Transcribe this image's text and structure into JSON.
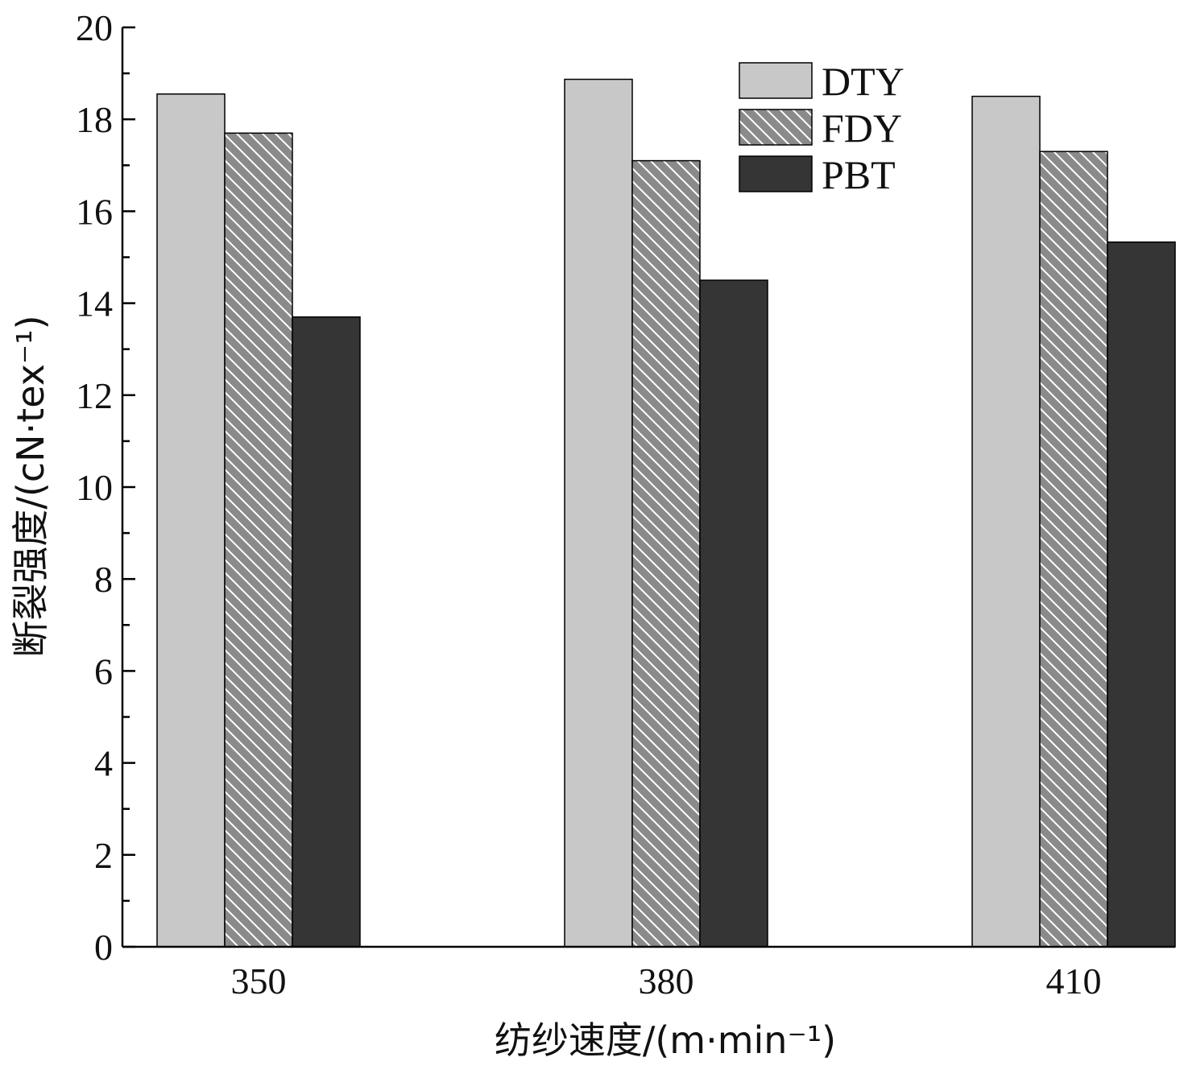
{
  "chart_data": {
    "type": "bar",
    "categories": [
      "350",
      "380",
      "410"
    ],
    "series": [
      {
        "name": "DTY",
        "values": [
          18.55,
          18.87,
          18.5
        ],
        "color": "#c8c8c8",
        "pattern": "solid"
      },
      {
        "name": "FDY",
        "values": [
          17.7,
          17.1,
          17.3
        ],
        "color": "#8a8a8a",
        "pattern": "hatch"
      },
      {
        "name": "PBT",
        "values": [
          13.7,
          14.5,
          15.33
        ],
        "color": "#353535",
        "pattern": "solid"
      }
    ],
    "xlabel": "纺纱速度/(m·min⁻¹)",
    "ylabel": "断裂强度/(cN·tex⁻¹)",
    "ylim": [
      0,
      20
    ],
    "yticks": [
      "0",
      "2",
      "4",
      "6",
      "8",
      "10",
      "12",
      "14",
      "16",
      "18",
      "20"
    ],
    "legend_position": "top-right",
    "grid": false
  }
}
